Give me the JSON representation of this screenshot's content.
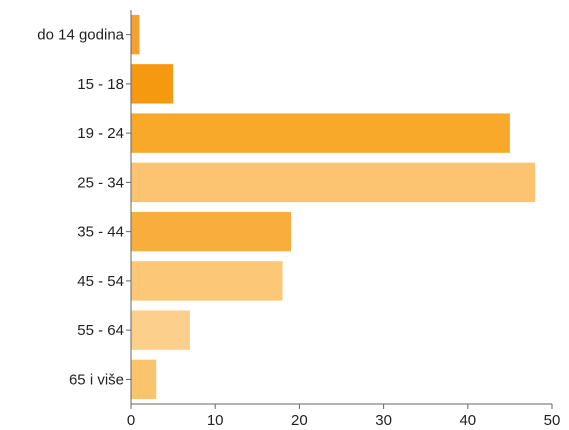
{
  "chart_data": {
    "type": "bar",
    "orientation": "horizontal",
    "categories": [
      "do 14 godina",
      "15 - 18",
      "19 - 24",
      "25 - 34",
      "35 - 44",
      "45 - 54",
      "55 - 64",
      "65 i više"
    ],
    "values": [
      1,
      5,
      45,
      48,
      19,
      18,
      7,
      3
    ],
    "colors": [
      "#f5a030",
      "#f59a10",
      "#f8a92a",
      "#fcc471",
      "#f8ad3d",
      "#fcc777",
      "#fcd08c",
      "#fcc36e"
    ],
    "xlim": [
      0,
      50
    ],
    "xticks": [
      0,
      10,
      20,
      30,
      40,
      50
    ],
    "grid": false,
    "title": "",
    "xlabel": "",
    "ylabel": ""
  }
}
